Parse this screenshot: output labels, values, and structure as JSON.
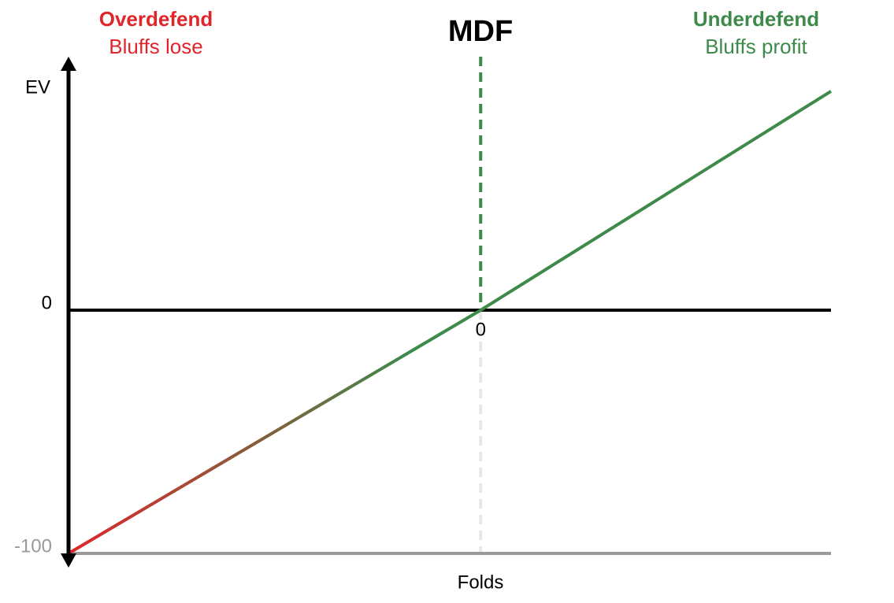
{
  "chart_data": {
    "type": "line",
    "title": "MDF",
    "annotations": {
      "left_heading": "Overdefend",
      "left_note": "Bluffs lose",
      "right_heading": "Underdefend",
      "right_note": "Bluffs profit"
    },
    "left_color": "#e0262b",
    "right_color": "#3d8a4a",
    "x_label": "Folds",
    "y_label": "EV",
    "x": [
      -100,
      0,
      85
    ],
    "series": [
      {
        "color": "#3d8a4a",
        "gradient_start_color": "#e0262b",
        "values": [
          -100,
          0,
          90
        ]
      }
    ],
    "xlim": [
      -100,
      85
    ],
    "xticks": [
      0
    ],
    "ylim": [
      -100,
      100
    ],
    "yticks": [
      -100,
      0
    ]
  }
}
